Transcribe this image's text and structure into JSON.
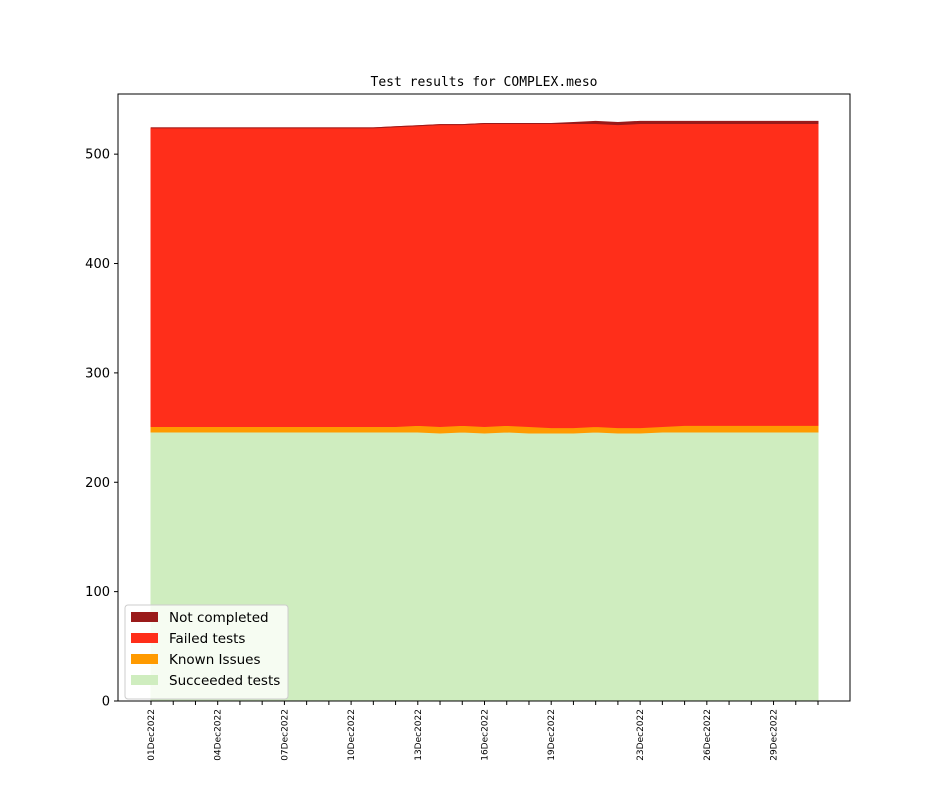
{
  "chart_data": {
    "type": "area",
    "stacked": true,
    "title": "Test results for COMPLEX.meso",
    "xlabel": "",
    "ylabel": "",
    "ylim": [
      0,
      555
    ],
    "yticks": [
      0,
      100,
      200,
      300,
      400,
      500
    ],
    "x": [
      "01Dec2022",
      "02Dec2022",
      "03Dec2022",
      "04Dec2022",
      "05Dec2022",
      "06Dec2022",
      "07Dec2022",
      "08Dec2022",
      "09Dec2022",
      "10Dec2022",
      "11Dec2022",
      "12Dec2022",
      "13Dec2022",
      "14Dec2022",
      "15Dec2022",
      "16Dec2022",
      "17Dec2022",
      "18Dec2022",
      "19Dec2022",
      "20Dec2022",
      "21Dec2022",
      "22Dec2022",
      "23Dec2022",
      "24Dec2022",
      "25Dec2022",
      "26Dec2022",
      "27Dec2022",
      "28Dec2022",
      "29Dec2022",
      "30Dec2022",
      "31Dec2022"
    ],
    "xtick_labels": [
      "01Dec2022",
      "04Dec2022",
      "07Dec2022",
      "10Dec2022",
      "13Dec2022",
      "16Dec2022",
      "19Dec2022",
      "23Dec2022",
      "26Dec2022",
      "29Dec2022"
    ],
    "legend_position": "lower-left",
    "series": [
      {
        "name": "Succeeded tests",
        "color": "#cfedbf",
        "values": [
          246,
          246,
          246,
          246,
          246,
          246,
          246,
          246,
          246,
          246,
          246,
          246,
          246,
          245,
          246,
          245,
          246,
          245,
          245,
          245,
          246,
          245,
          245,
          246,
          246,
          246,
          246,
          246,
          246,
          246,
          246
        ]
      },
      {
        "name": "Known Issues",
        "color": "#ff9a00",
        "values": [
          5,
          5,
          5,
          5,
          5,
          5,
          5,
          5,
          5,
          5,
          5,
          5,
          6,
          6,
          6,
          6,
          6,
          6,
          5,
          5,
          5,
          5,
          5,
          5,
          6,
          6,
          6,
          6,
          6,
          6,
          6
        ]
      },
      {
        "name": "Failed tests",
        "color": "#ff2e1a",
        "values": [
          273,
          273,
          273,
          273,
          273,
          273,
          273,
          273,
          273,
          273,
          273,
          274,
          274,
          276,
          275,
          277,
          276,
          277,
          278,
          278,
          277,
          277,
          278,
          277,
          276,
          276,
          276,
          276,
          276,
          276,
          276
        ]
      },
      {
        "name": "Not completed",
        "color": "#9a1a1a",
        "values": [
          0,
          0,
          0,
          0,
          0,
          0,
          0,
          0,
          0,
          0,
          0,
          0,
          0,
          0,
          0,
          0,
          0,
          0,
          0,
          1,
          2,
          2,
          2,
          2,
          2,
          2,
          2,
          2,
          2,
          2,
          2
        ]
      }
    ]
  }
}
